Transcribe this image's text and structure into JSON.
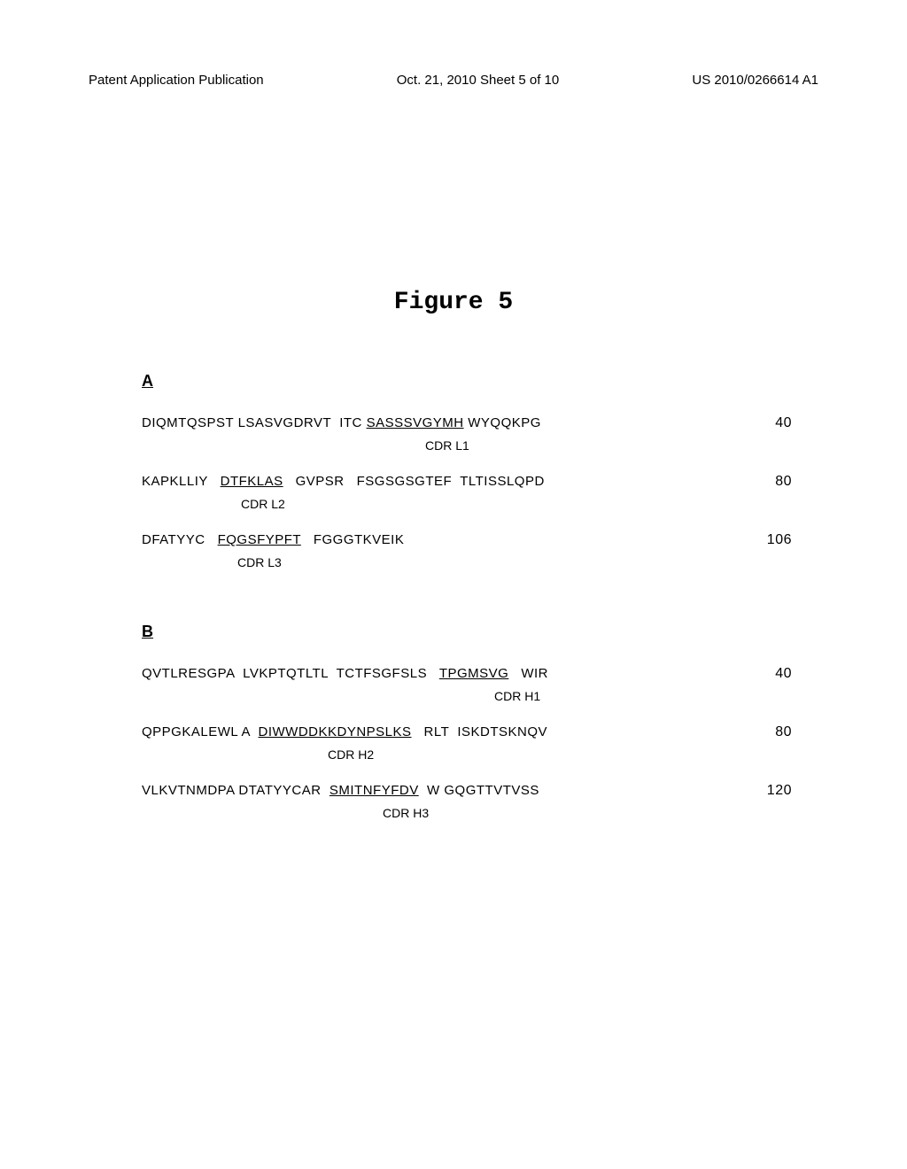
{
  "header": {
    "left": "Patent Application Publication",
    "center": "Oct. 21, 2010  Sheet 5 of 10",
    "right": "US 2010/0266614 A1"
  },
  "figure_title": "Figure 5",
  "section_a": {
    "label": "A",
    "rows": [
      {
        "parts": [
          {
            "text": "DIQMTQSPST LSASVGDRVT  ITC ",
            "style": "plain"
          },
          {
            "text": "SASSSVGYMH",
            "style": "underline"
          },
          {
            "text": " WYQQKPG",
            "style": "plain"
          }
        ],
        "num": "40",
        "cdr_label": "CDR L1",
        "cdr_indent": 320
      },
      {
        "parts": [
          {
            "text": "KAPKLLIY   ",
            "style": "plain"
          },
          {
            "text": "DTFKLAS",
            "style": "underline"
          },
          {
            "text": "   GVPSR   FSGSGSGTEF  TLTISSLQPD",
            "style": "plain"
          }
        ],
        "num": "80",
        "cdr_label": "CDR L2",
        "cdr_indent": 112
      },
      {
        "parts": [
          {
            "text": "DFATYYC   ",
            "style": "plain"
          },
          {
            "text": "FQGSFYPFT",
            "style": "underline"
          },
          {
            "text": "   FGGGTKVEIK",
            "style": "plain"
          }
        ],
        "num": "106",
        "cdr_label": "CDR L3",
        "cdr_indent": 108
      }
    ]
  },
  "section_b": {
    "label": "B",
    "rows": [
      {
        "parts": [
          {
            "text": "QVTLRESGPA  LVKPTQTLTL  TCTFSGFSLS   ",
            "style": "plain"
          },
          {
            "text": "TPGMSVG",
            "style": "underline"
          },
          {
            "text": "   WIR",
            "style": "plain"
          }
        ],
        "num": "40",
        "cdr_label": "CDR H1",
        "cdr_indent": 398
      },
      {
        "parts": [
          {
            "text": "QPPGKALEWL A  ",
            "style": "plain"
          },
          {
            "text": "DIWWDDKKDYNPSLKS",
            "style": "underline"
          },
          {
            "text": "   RLT  ISKDTSKNQV",
            "style": "plain"
          }
        ],
        "num": "80",
        "cdr_label": "CDR H2",
        "cdr_indent": 210
      },
      {
        "parts": [
          {
            "text": "VLKVTNMDPA DTATYYCAR  ",
            "style": "plain"
          },
          {
            "text": "SMITNFYFDV",
            "style": "underline"
          },
          {
            "text": "  W GQGTTVTVSS",
            "style": "plain"
          }
        ],
        "num": "120",
        "cdr_label": "CDR H3",
        "cdr_indent": 272
      }
    ]
  }
}
